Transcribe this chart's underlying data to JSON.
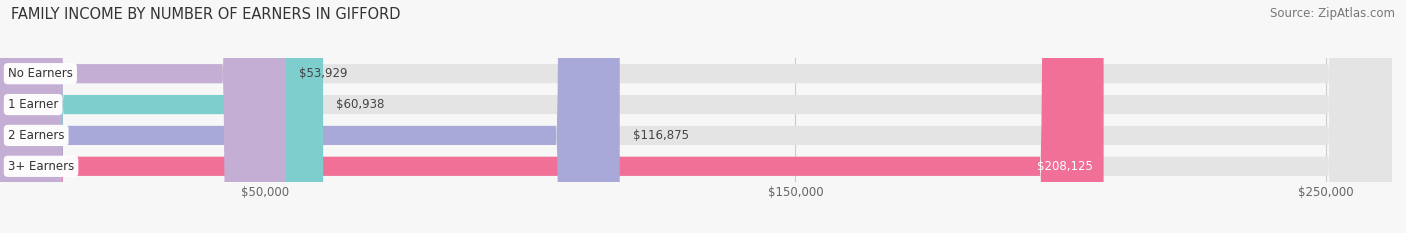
{
  "title": "FAMILY INCOME BY NUMBER OF EARNERS IN GIFFORD",
  "source": "Source: ZipAtlas.com",
  "categories": [
    "No Earners",
    "1 Earner",
    "2 Earners",
    "3+ Earners"
  ],
  "values": [
    53929,
    60938,
    116875,
    208125
  ],
  "bar_colors": [
    "#c4aed4",
    "#7ecece",
    "#a9a9d9",
    "#f07098"
  ],
  "xlim": [
    0,
    262500
  ],
  "xticks": [
    50000,
    150000,
    250000
  ],
  "xtick_labels": [
    "$50,000",
    "$150,000",
    "$250,000"
  ],
  "background_color": "#f7f7f7",
  "bar_bg_color": "#e4e4e4",
  "title_fontsize": 10.5,
  "source_fontsize": 8.5,
  "label_fontsize": 8.5,
  "tick_fontsize": 8.5,
  "bar_height": 0.62,
  "fig_width": 14.06,
  "fig_height": 2.33,
  "value_label_inside": [
    false,
    false,
    false,
    true
  ]
}
